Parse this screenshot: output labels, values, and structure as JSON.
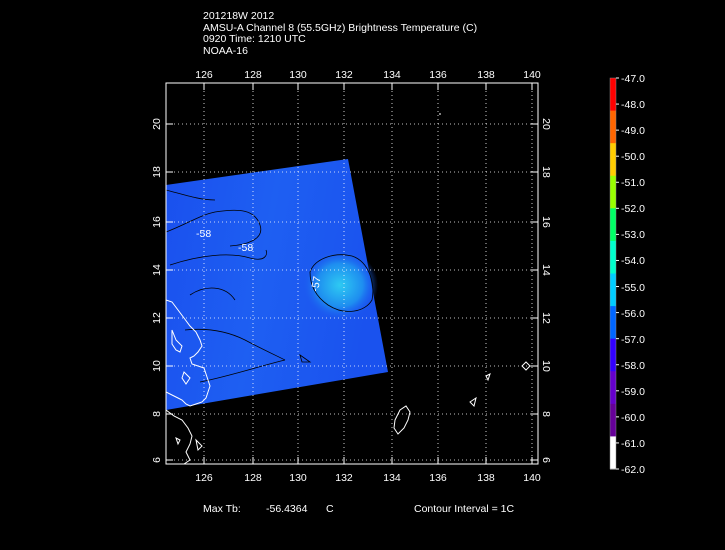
{
  "header": {
    "line1": "201218W 2012",
    "line2": "AMSU-A Channel 8 (55.5GHz) Brightness Temperature (C)",
    "line3": "0920 Time: 1210 UTC",
    "line4": "NOAA-16"
  },
  "map": {
    "lon_ticks": [
      "126",
      "128",
      "130",
      "132",
      "134",
      "136",
      "138",
      "140"
    ],
    "lat_ticks": [
      "6",
      "8",
      "10",
      "12",
      "14",
      "16",
      "18",
      "20"
    ],
    "lon_range": [
      124.3,
      140.3
    ],
    "lat_range": [
      5.8,
      21.5
    ],
    "contour_labels": [
      "-58",
      "-58",
      "-57"
    ],
    "swath_color": "#1a55f0",
    "warm_spot_color": "#28c8f0",
    "coastline_color": "#ffffff"
  },
  "colorbar": {
    "labels": [
      "-47.0",
      "-48.0",
      "-49.0",
      "-50.0",
      "-51.0",
      "-52.0",
      "-53.0",
      "-54.0",
      "-55.0",
      "-56.0",
      "-57.0",
      "-58.0",
      "-59.0",
      "-60.0",
      "-61.0",
      "-62.0"
    ],
    "colors": [
      "#ff0000",
      "#ff6600",
      "#ffcc00",
      "#99ff00",
      "#00ff66",
      "#00ffcc",
      "#00ccff",
      "#0066ff",
      "#3300ff",
      "#6600cc",
      "#660099",
      "#ffffff"
    ]
  },
  "footer": {
    "max_label": "Max Tb:",
    "max_value": "-56.4364",
    "max_unit": "C",
    "contour_interval": "Contour Interval = 1C"
  }
}
